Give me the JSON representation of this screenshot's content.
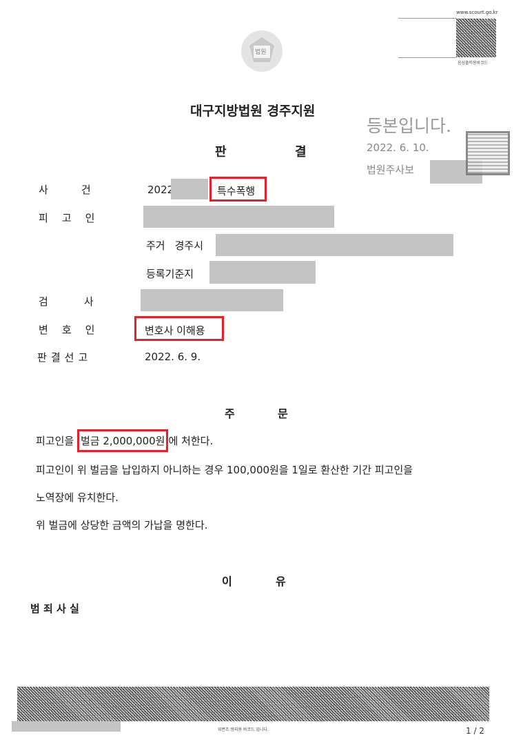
{
  "header": {
    "url": "www.scourt.go.kr",
    "barcode_caption": "음성출력용바코드",
    "emblem_text": "법원"
  },
  "court": "대구지방법원 경주지원",
  "doc_title": [
    "판",
    "결"
  ],
  "certification": {
    "text": "등본입니다.",
    "date": "2022. 6. 10.",
    "clerk": "법원주사보",
    "seal": "seal"
  },
  "fields": {
    "case": {
      "label": [
        "사",
        "건"
      ],
      "year": "2022",
      "name": "특수폭행"
    },
    "defendant": {
      "label": [
        "피",
        "고",
        "인"
      ],
      "address_label": "주거",
      "address_city": "경주시",
      "registry_label": "등록기준지"
    },
    "prosecutor": {
      "label": [
        "검",
        "사"
      ]
    },
    "counsel": {
      "label": [
        "변",
        "호",
        "인"
      ],
      "value": "변호사 이해용"
    },
    "sentence_date": {
      "label": [
        "판",
        "결",
        "선",
        "고"
      ],
      "value": "2022. 6. 9."
    }
  },
  "order": {
    "title": [
      "주",
      "문"
    ],
    "line1_pre": "피고인을 ",
    "line1_fine": "벌금 2,000,000원",
    "line1_post": "에 처한다.",
    "line2": "피고인이 위 벌금을 납입하지 아니하는 경우 100,000원을 1일로 환산한 기간 피고인을",
    "line3": "노역장에 유치한다.",
    "line4": "위 벌금에 상당한 금액의 가납을 명한다."
  },
  "reason": {
    "title": [
      "이",
      "유"
    ],
    "subtitle": "범 죄 사 실"
  },
  "footer": {
    "barcode_caption": "위변조 방지용 바코드 입니다.",
    "page": "1 / 2"
  }
}
